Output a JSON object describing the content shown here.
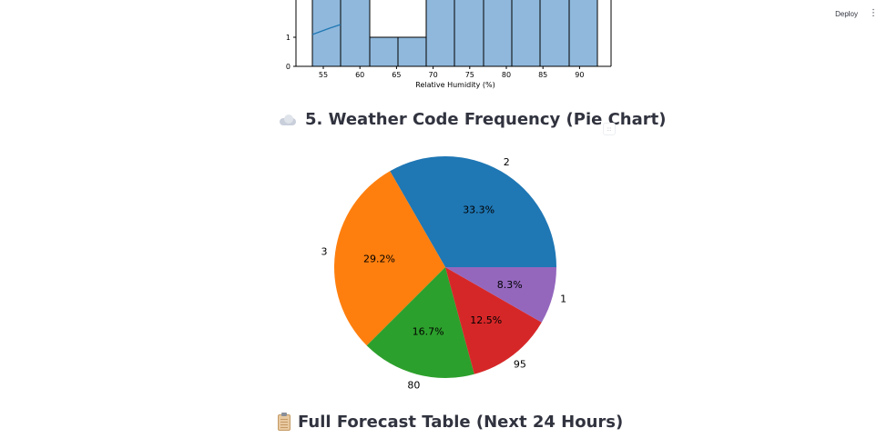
{
  "toolbar": {
    "deploy_label": "Deploy",
    "menu_icon": "vertical-ellipsis-icon"
  },
  "histogram": {
    "xlabel": "Relative Humidity (%)",
    "x_ticks": [
      "55",
      "60",
      "65",
      "70",
      "75",
      "80",
      "85",
      "90"
    ],
    "y_ticks": [
      "0",
      "1"
    ],
    "bar_color": "#8fb8dc",
    "edge_color": "#000000",
    "kde_color": "#1f77b4"
  },
  "section5": {
    "icon": "cloud-icon",
    "title": "5. Weather Code Frequency (Pie Chart)",
    "anchor_icon": "link-anchor-icon"
  },
  "chart_data": {
    "type": "pie",
    "slices": [
      {
        "label": "2",
        "value": 33.3,
        "pct_label": "33.3%",
        "color": "#1f77b4"
      },
      {
        "label": "3",
        "value": 29.2,
        "pct_label": "29.2%",
        "color": "#ff7f0e"
      },
      {
        "label": "80",
        "value": 16.7,
        "pct_label": "16.7%",
        "color": "#2ca02c"
      },
      {
        "label": "95",
        "value": 12.5,
        "pct_label": "12.5%",
        "color": "#d62728"
      },
      {
        "label": "1",
        "value": 8.3,
        "pct_label": "8.3%",
        "color": "#9467bd"
      }
    ]
  },
  "section_table": {
    "icon": "clipboard-icon",
    "title": "Full Forecast Table (Next 24 Hours)"
  }
}
